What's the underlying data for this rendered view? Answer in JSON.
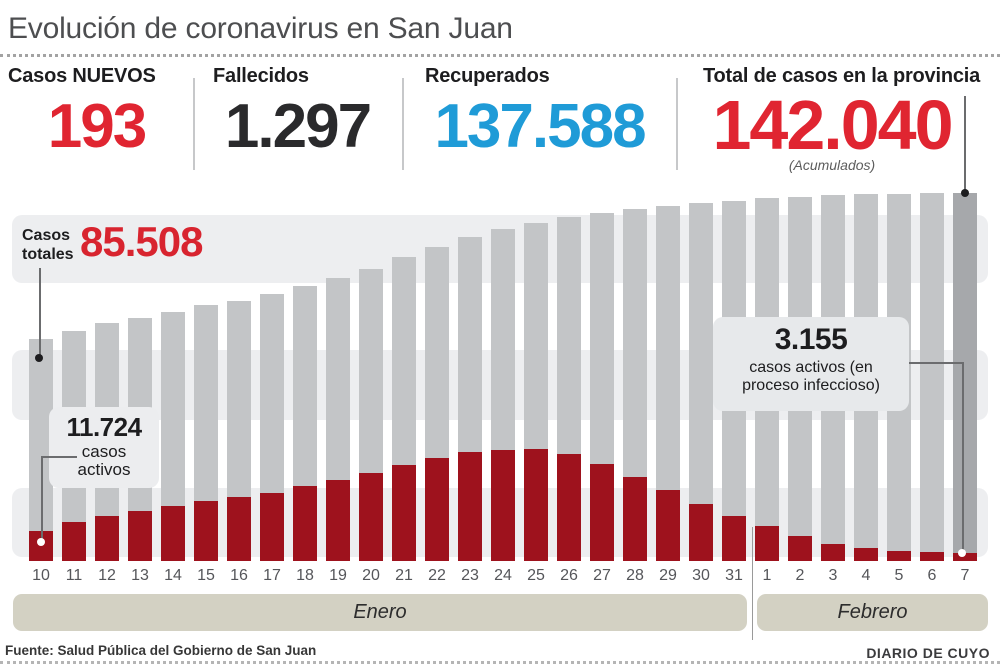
{
  "header": {
    "title": "Evolución de coronavirus en San Juan",
    "stats": [
      {
        "label": "Casos NUEVOS",
        "value": "193",
        "color": "#e02531"
      },
      {
        "label": "Fallecidos",
        "value": "1.297",
        "color": "#2a2a2c"
      },
      {
        "label": "Recuperados",
        "value": "137.588",
        "color": "#1f9bd7"
      },
      {
        "label": "Total de casos en la provincia",
        "value": "142.040",
        "note": "(Acumulados)",
        "color": "#e02531"
      }
    ]
  },
  "annotations": {
    "first_total": {
      "label": "Casos totales",
      "value": "85.508"
    },
    "first_active": {
      "value": "11.724",
      "label": "casos activos"
    },
    "last_active": {
      "value": "3.155",
      "label": "casos activos (en proceso infeccioso)"
    }
  },
  "chart_data": {
    "type": "bar",
    "categories": [
      "10",
      "11",
      "12",
      "13",
      "14",
      "15",
      "16",
      "17",
      "18",
      "19",
      "20",
      "21",
      "22",
      "23",
      "24",
      "25",
      "26",
      "27",
      "28",
      "29",
      "30",
      "31",
      "1",
      "2",
      "3",
      "4",
      "5",
      "6",
      "7"
    ],
    "month_groups": [
      {
        "label": "Enero",
        "start": 0,
        "end": 21
      },
      {
        "label": "Febrero",
        "start": 22,
        "end": 28
      }
    ],
    "series": [
      {
        "name": "Casos totales",
        "color": "#c3c5c7",
        "values": [
          85508,
          88800,
          91900,
          93800,
          96100,
          98800,
          100400,
          103100,
          106200,
          109200,
          112700,
          117300,
          121200,
          125100,
          128200,
          130500,
          132800,
          134300,
          135900,
          137000,
          138200,
          139000,
          140100,
          140500,
          141200,
          141600,
          141800,
          141900,
          142040
        ]
      },
      {
        "name": "Casos activos (en proceso infeccioso)",
        "color": "#9e121d",
        "values": [
          11724,
          15100,
          17400,
          19300,
          21200,
          23200,
          24700,
          26200,
          29000,
          31300,
          34000,
          37100,
          39800,
          42100,
          42800,
          43200,
          41300,
          37400,
          32400,
          27400,
          22000,
          17400,
          13500,
          9700,
          6600,
          5000,
          3900,
          3400,
          3155
        ]
      }
    ],
    "last_bar_color": "#a6a8ab",
    "labeled_points": {
      "first_day_total": 85508,
      "first_day_active": 11724,
      "last_day_total": 142040,
      "last_day_active": 3155
    },
    "ylim": [
      0,
      142040
    ],
    "grid": "horizontal-stripes",
    "legend": "none"
  },
  "footer": {
    "source": "Fuente: Salud Pública del Gobierno de San Juan",
    "brand": "DIARIO DE CUYO"
  }
}
